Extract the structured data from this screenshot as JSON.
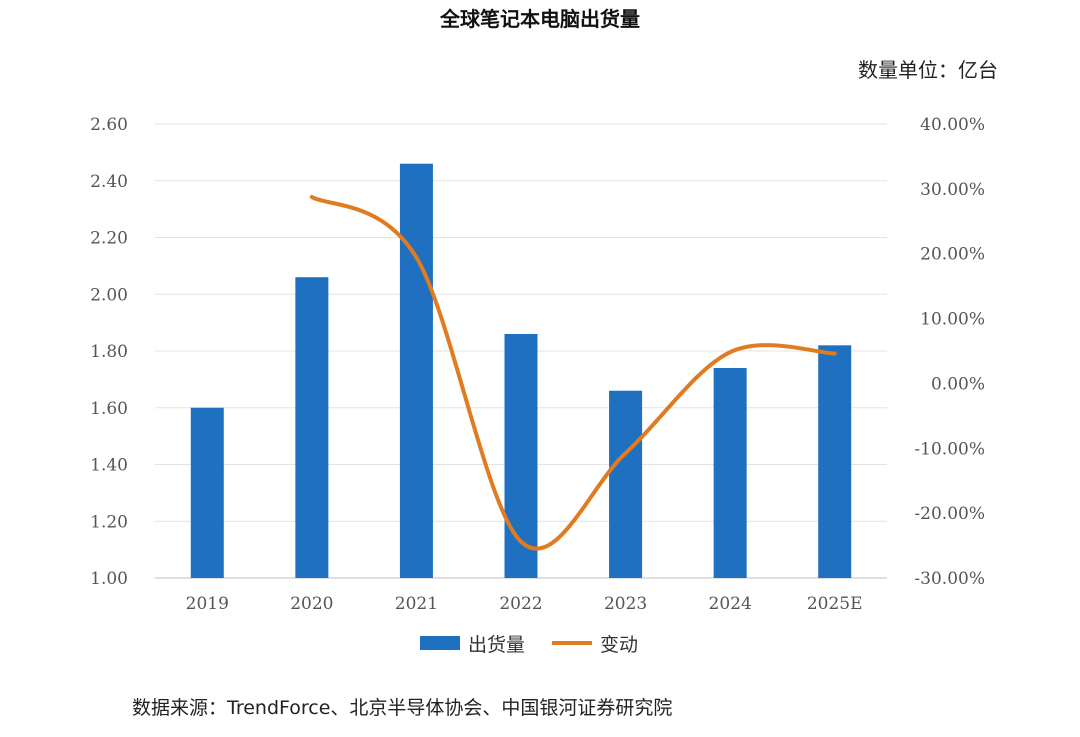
{
  "chart_data": {
    "type": "bar",
    "title": "全球笔记本电脑出货量",
    "unit_label": "数量单位：亿台",
    "categories": [
      "2019",
      "2020",
      "2021",
      "2022",
      "2023",
      "2024",
      "2025E"
    ],
    "series": [
      {
        "name": "出货量",
        "type": "bar",
        "axis": "left",
        "color": "#1f70c1",
        "values": [
          1.6,
          2.06,
          2.46,
          1.86,
          1.66,
          1.74,
          1.82
        ]
      },
      {
        "name": "变动",
        "type": "line",
        "axis": "right",
        "color": "#e07b22",
        "values": [
          null,
          28.75,
          19.42,
          -24.39,
          -10.75,
          4.82,
          4.6
        ]
      }
    ],
    "y_left": {
      "lim": [
        1.0,
        2.6
      ],
      "ticks": [
        "1.00",
        "1.20",
        "1.40",
        "1.60",
        "1.80",
        "2.00",
        "2.20",
        "2.40",
        "2.60"
      ]
    },
    "y_right": {
      "lim": [
        -30,
        40
      ],
      "ticks": [
        "-30.00%",
        "-20.00%",
        "-10.00%",
        "0.00%",
        "10.00%",
        "20.00%",
        "30.00%",
        "40.00%"
      ]
    },
    "grid": true,
    "legend_position": "bottom",
    "source": "数据来源：TrendForce、北京半导体协会、中国银河证券研究院"
  }
}
